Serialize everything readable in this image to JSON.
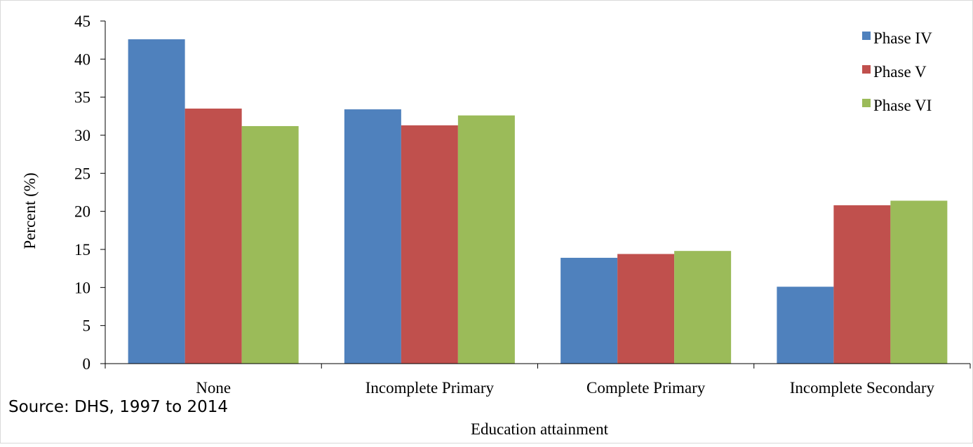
{
  "chart_data": {
    "type": "bar",
    "categories": [
      "None",
      "Incomplete Primary",
      "Complete Primary",
      "Incomplete Secondary"
    ],
    "series": [
      {
        "name": "Phase IV",
        "color": "#4F81BD",
        "values": [
          42.6,
          33.4,
          13.9,
          10.1
        ]
      },
      {
        "name": "Phase V",
        "color": "#C0504D",
        "values": [
          33.5,
          31.3,
          14.4,
          20.8
        ]
      },
      {
        "name": "Phase VI",
        "color": "#9BBB59",
        "values": [
          31.2,
          32.6,
          14.8,
          21.4
        ]
      }
    ],
    "xlabel": "Education attainment",
    "ylabel": "Percent (%)",
    "ylim": [
      0,
      45
    ],
    "yticks": [
      "0",
      "5",
      "10",
      "15",
      "20",
      "25",
      "30",
      "35",
      "40",
      "45"
    ],
    "legend_position": "top-right",
    "grid": false
  },
  "source_note": "Source: DHS, 1997 to 2014"
}
